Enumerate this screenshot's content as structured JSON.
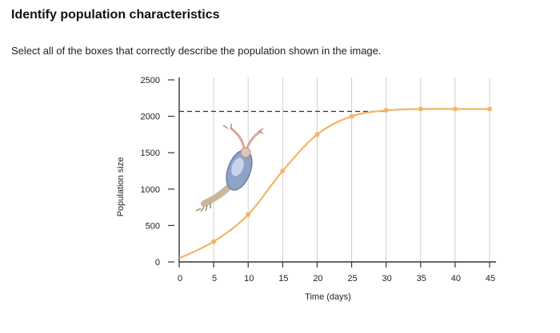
{
  "header": {
    "title": "Identify population characteristics",
    "instruction": "Select all of the boxes that correctly describe the population shown in the image."
  },
  "colors": {
    "curve": "#f5b465",
    "grid": "#d0d0d0",
    "axis": "#333333",
    "dashed": "#333333",
    "background": "#ffffff"
  },
  "illustration": {
    "icon": "copepod-icon"
  },
  "chart_data": {
    "type": "line",
    "title": "",
    "xlabel": "Time (days)",
    "ylabel": "Population size",
    "xlim": [
      0,
      45
    ],
    "ylim": [
      0,
      2500
    ],
    "x_ticks": [
      0,
      5,
      10,
      15,
      20,
      25,
      30,
      35,
      40,
      45
    ],
    "y_ticks": [
      0,
      500,
      1000,
      1500,
      2000,
      2500
    ],
    "grid": "vertical",
    "series": [
      {
        "name": "",
        "x": [
          0,
          5,
          10,
          15,
          20,
          25,
          30,
          35,
          40,
          45
        ],
        "y": [
          50,
          280,
          650,
          1250,
          1750,
          2000,
          2080,
          2100,
          2100,
          2100
        ],
        "markers": [
          5,
          10,
          15,
          20,
          25,
          30,
          35,
          40,
          45
        ]
      }
    ],
    "reference_lines": [
      {
        "orientation": "horizontal",
        "y": 2100,
        "style": "dashed"
      }
    ]
  }
}
